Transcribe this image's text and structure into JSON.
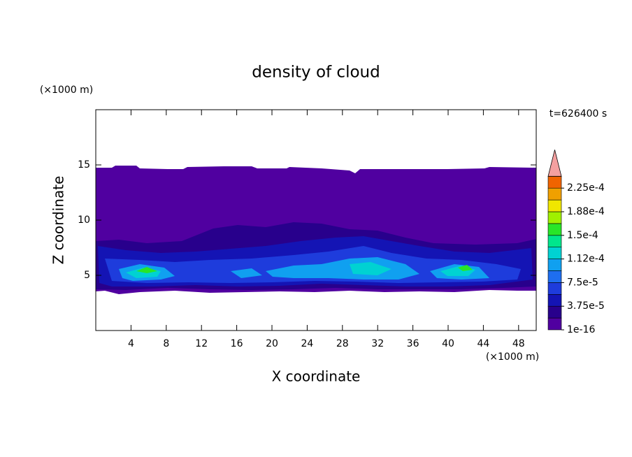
{
  "chart_data": {
    "type": "contour",
    "title": "density of cloud",
    "xlabel": "X coordinate",
    "ylabel": "Z coordinate",
    "xunit": "(×1000 m)",
    "yunit": "(×1000 m)",
    "time_label": "t=626400 s",
    "xlim": [
      0,
      50
    ],
    "xticks": [
      4,
      8,
      12,
      16,
      20,
      24,
      28,
      32,
      36,
      40,
      44,
      48
    ],
    "ylim": [
      0,
      20
    ],
    "yticks": [
      5,
      10,
      15
    ],
    "colorbar": {
      "levels": [
        1e-16,
        1.875e-05,
        3.75e-05,
        5.625e-05,
        7.5e-05,
        9.375e-05,
        0.0001125,
        0.00013125,
        0.00015,
        0.00016875,
        0.0001875,
        0.00020625,
        0.000225,
        0.00024375
      ],
      "colors": [
        "#5000a0",
        "#28008c",
        "#1414b4",
        "#1e3cdc",
        "#1e6ef0",
        "#10a0f0",
        "#00d2d2",
        "#00e68c",
        "#28e628",
        "#a0f000",
        "#f0e600",
        "#f0a000",
        "#f06400"
      ],
      "extend_color": "#f4a0a0",
      "ticks": [
        {
          "value": 1e-16,
          "label": "1e-16"
        },
        {
          "value": 3.75e-05,
          "label": "3.75e-5"
        },
        {
          "value": 7.5e-05,
          "label": "7.5e-5"
        },
        {
          "value": 0.0001125,
          "label": "1.12e-4"
        },
        {
          "value": 0.00015,
          "label": "1.5e-4"
        },
        {
          "value": 0.0001875,
          "label": "1.88e-4"
        },
        {
          "value": 0.000225,
          "label": "2.25e-4"
        }
      ]
    }
  }
}
